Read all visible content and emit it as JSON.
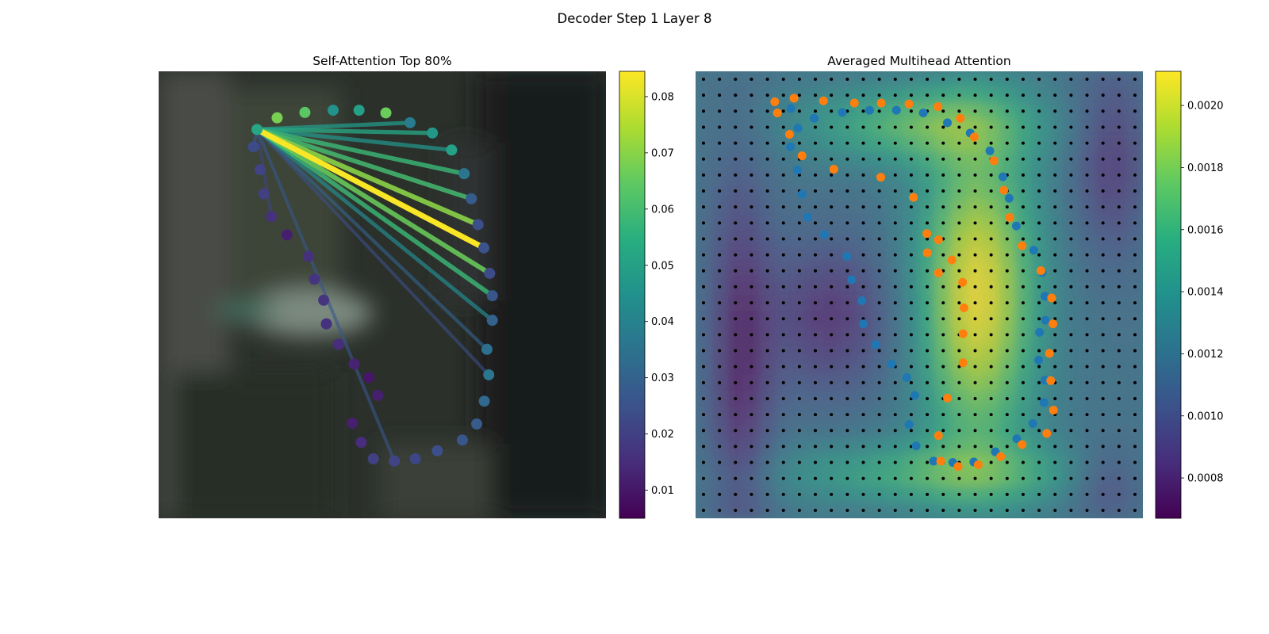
{
  "suptitle": "Decoder Step 1 Layer 8",
  "chart_data": [
    {
      "type": "scatter",
      "title": "Self-Attention Top 80%",
      "description_of_marks": "contour points over a blurred background image; lines from the query point to attended points, coloured by attention weight",
      "colormap": "viridis",
      "colorbar": {
        "min": 0.005,
        "max": 0.0845,
        "ticks": [
          0.01,
          0.02,
          0.03,
          0.04,
          0.05,
          0.06,
          0.07,
          0.08
        ],
        "tick_labels": [
          "0.01",
          "0.02",
          "0.03",
          "0.04",
          "0.05",
          "0.06",
          "0.07",
          "0.08"
        ]
      },
      "query_point": [
        0.22,
        0.13
      ],
      "points": [
        {
          "x": 0.22,
          "y": 0.13,
          "v": 0.052
        },
        {
          "x": 0.265,
          "y": 0.104,
          "v": 0.068
        },
        {
          "x": 0.327,
          "y": 0.092,
          "v": 0.064
        },
        {
          "x": 0.39,
          "y": 0.087,
          "v": 0.045
        },
        {
          "x": 0.448,
          "y": 0.087,
          "v": 0.05
        },
        {
          "x": 0.508,
          "y": 0.093,
          "v": 0.066
        },
        {
          "x": 0.562,
          "y": 0.115,
          "v": 0.038
        },
        {
          "x": 0.612,
          "y": 0.138,
          "v": 0.047
        },
        {
          "x": 0.655,
          "y": 0.176,
          "v": 0.05
        },
        {
          "x": 0.683,
          "y": 0.229,
          "v": 0.036
        },
        {
          "x": 0.699,
          "y": 0.285,
          "v": 0.028
        },
        {
          "x": 0.714,
          "y": 0.343,
          "v": 0.024
        },
        {
          "x": 0.727,
          "y": 0.395,
          "v": 0.025
        },
        {
          "x": 0.74,
          "y": 0.452,
          "v": 0.023
        },
        {
          "x": 0.746,
          "y": 0.502,
          "v": 0.026
        },
        {
          "x": 0.746,
          "y": 0.557,
          "v": 0.03
        },
        {
          "x": 0.734,
          "y": 0.622,
          "v": 0.034
        },
        {
          "x": 0.738,
          "y": 0.679,
          "v": 0.036
        },
        {
          "x": 0.728,
          "y": 0.738,
          "v": 0.032
        },
        {
          "x": 0.711,
          "y": 0.789,
          "v": 0.028
        },
        {
          "x": 0.679,
          "y": 0.825,
          "v": 0.026
        },
        {
          "x": 0.623,
          "y": 0.849,
          "v": 0.024
        },
        {
          "x": 0.574,
          "y": 0.867,
          "v": 0.022
        },
        {
          "x": 0.527,
          "y": 0.872,
          "v": 0.021
        },
        {
          "x": 0.48,
          "y": 0.867,
          "v": 0.02
        },
        {
          "x": 0.453,
          "y": 0.83,
          "v": 0.015
        },
        {
          "x": 0.433,
          "y": 0.787,
          "v": 0.012
        },
        {
          "x": 0.49,
          "y": 0.725,
          "v": 0.012
        },
        {
          "x": 0.47,
          "y": 0.685,
          "v": 0.01
        },
        {
          "x": 0.437,
          "y": 0.655,
          "v": 0.013
        },
        {
          "x": 0.402,
          "y": 0.611,
          "v": 0.015
        },
        {
          "x": 0.375,
          "y": 0.565,
          "v": 0.016
        },
        {
          "x": 0.369,
          "y": 0.512,
          "v": 0.017
        },
        {
          "x": 0.348,
          "y": 0.465,
          "v": 0.017
        },
        {
          "x": 0.335,
          "y": 0.414,
          "v": 0.016
        },
        {
          "x": 0.287,
          "y": 0.366,
          "v": 0.012
        },
        {
          "x": 0.252,
          "y": 0.325,
          "v": 0.016
        },
        {
          "x": 0.235,
          "y": 0.274,
          "v": 0.02
        },
        {
          "x": 0.227,
          "y": 0.22,
          "v": 0.021
        },
        {
          "x": 0.212,
          "y": 0.169,
          "v": 0.023
        }
      ],
      "edges": [
        {
          "to": 6,
          "v": 0.048
        },
        {
          "to": 7,
          "v": 0.052
        },
        {
          "to": 8,
          "v": 0.046
        },
        {
          "to": 9,
          "v": 0.058
        },
        {
          "to": 10,
          "v": 0.06
        },
        {
          "to": 11,
          "v": 0.07
        },
        {
          "to": 12,
          "v": 0.084
        },
        {
          "to": 13,
          "v": 0.066
        },
        {
          "to": 14,
          "v": 0.058
        },
        {
          "to": 15,
          "v": 0.042
        },
        {
          "to": 16,
          "v": 0.03
        },
        {
          "to": 17,
          "v": 0.024
        },
        {
          "to": 23,
          "v": 0.026
        },
        {
          "to": 36,
          "v": 0.022
        },
        {
          "to": 39,
          "v": 0.028
        }
      ]
    },
    {
      "type": "heatmap",
      "title": "Averaged Multihead Attention",
      "description_of_marks": "attention heatmap over a grid of sampling points, with two contour point sets overlaid",
      "colormap": "viridis",
      "colorbar": {
        "min": 0.00067,
        "max": 0.00211,
        "ticks": [
          0.0008,
          0.001,
          0.0012,
          0.0014,
          0.0016,
          0.0018,
          0.002
        ],
        "tick_labels": [
          "0.0008",
          "0.0010",
          "0.0012",
          "0.0014",
          "0.0016",
          "0.0018",
          "0.0020"
        ]
      },
      "grid": {
        "rows": 28,
        "cols": 28
      },
      "series": [
        {
          "color": "#1f77b4",
          "points": [
            [
              0.213,
              0.083
            ],
            [
              0.229,
              0.127
            ],
            [
              0.212,
              0.169
            ],
            [
              0.228,
              0.221
            ],
            [
              0.238,
              0.275
            ],
            [
              0.251,
              0.326
            ],
            [
              0.288,
              0.365
            ],
            [
              0.338,
              0.414
            ],
            [
              0.349,
              0.466
            ],
            [
              0.372,
              0.513
            ],
            [
              0.375,
              0.565
            ],
            [
              0.403,
              0.611
            ],
            [
              0.438,
              0.655
            ],
            [
              0.472,
              0.685
            ],
            [
              0.49,
              0.725
            ],
            [
              0.477,
              0.79
            ],
            [
              0.493,
              0.838
            ],
            [
              0.532,
              0.872
            ],
            [
              0.575,
              0.875
            ],
            [
              0.622,
              0.874
            ],
            [
              0.67,
              0.851
            ],
            [
              0.718,
              0.822
            ],
            [
              0.754,
              0.788
            ],
            [
              0.779,
              0.741
            ],
            [
              0.781,
              0.691
            ],
            [
              0.767,
              0.646
            ],
            [
              0.769,
              0.584
            ],
            [
              0.782,
              0.557
            ],
            [
              0.781,
              0.503
            ],
            [
              0.775,
              0.45
            ],
            [
              0.756,
              0.4
            ],
            [
              0.717,
              0.346
            ],
            [
              0.701,
              0.284
            ],
            [
              0.687,
              0.236
            ],
            [
              0.658,
              0.178
            ],
            [
              0.614,
              0.138
            ],
            [
              0.563,
              0.115
            ],
            [
              0.509,
              0.093
            ],
            [
              0.449,
              0.087
            ],
            [
              0.389,
              0.087
            ],
            [
              0.328,
              0.092
            ],
            [
              0.265,
              0.105
            ]
          ]
        },
        {
          "color": "#ff7f0e",
          "points": [
            [
              0.177,
              0.068
            ],
            [
              0.183,
              0.093
            ],
            [
              0.21,
              0.141
            ],
            [
              0.238,
              0.189
            ],
            [
              0.22,
              0.06
            ],
            [
              0.286,
              0.066
            ],
            [
              0.309,
              0.219
            ],
            [
              0.355,
              0.071
            ],
            [
              0.415,
              0.071
            ],
            [
              0.414,
              0.237
            ],
            [
              0.477,
              0.073
            ],
            [
              0.487,
              0.282
            ],
            [
              0.542,
              0.079
            ],
            [
              0.517,
              0.363
            ],
            [
              0.518,
              0.406
            ],
            [
              0.543,
              0.451
            ],
            [
              0.592,
              0.105
            ],
            [
              0.623,
              0.147
            ],
            [
              0.667,
              0.2
            ],
            [
              0.689,
              0.266
            ],
            [
              0.702,
              0.327
            ],
            [
              0.73,
              0.39
            ],
            [
              0.772,
              0.446
            ],
            [
              0.796,
              0.507
            ],
            [
              0.799,
              0.565
            ],
            [
              0.791,
              0.631
            ],
            [
              0.794,
              0.692
            ],
            [
              0.8,
              0.758
            ],
            [
              0.785,
              0.81
            ],
            [
              0.73,
              0.835
            ],
            [
              0.682,
              0.862
            ],
            [
              0.632,
              0.88
            ],
            [
              0.587,
              0.884
            ],
            [
              0.548,
              0.872
            ],
            [
              0.543,
              0.815
            ],
            [
              0.563,
              0.731
            ],
            [
              0.598,
              0.652
            ],
            [
              0.598,
              0.587
            ],
            [
              0.6,
              0.529
            ],
            [
              0.597,
              0.472
            ],
            [
              0.573,
              0.422
            ],
            [
              0.543,
              0.377
            ]
          ]
        }
      ]
    }
  ]
}
